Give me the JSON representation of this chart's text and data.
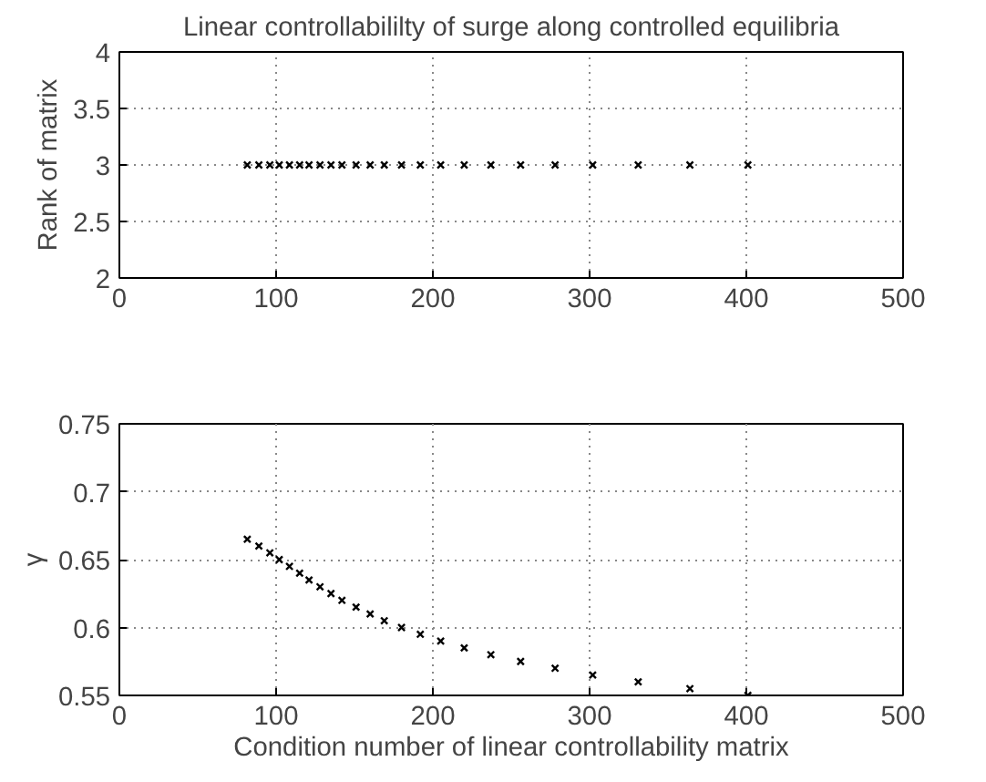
{
  "chart_data": [
    {
      "type": "scatter",
      "title": "Linear controllabililty of surge along controlled equilibria",
      "ylabel": "Rank of matrix",
      "x": [
        81.6,
        89,
        96,
        102,
        108.5,
        115,
        121,
        128,
        135,
        142,
        151,
        160,
        169,
        180,
        192,
        205,
        220,
        237,
        256,
        278,
        302,
        331,
        364,
        401
      ],
      "series": [
        {
          "color": "#000000",
          "values": [
            3,
            3,
            3,
            3,
            3,
            3,
            3,
            3,
            3,
            3,
            3,
            3,
            3,
            3,
            3,
            3,
            3,
            3,
            3,
            3,
            3,
            3,
            3,
            3
          ]
        }
      ],
      "xlim": [
        0,
        500
      ],
      "xticks": [
        0,
        100,
        200,
        300,
        400,
        500
      ],
      "ylim": [
        2,
        4
      ],
      "yticks": [
        2,
        2.5,
        3,
        3.5,
        4
      ],
      "grid": true,
      "marker": "cross"
    },
    {
      "type": "scatter",
      "xlabel": "Condition number of linear controllability matrix",
      "ylabel": "γ",
      "x": [
        81.6,
        89,
        96,
        102,
        108.5,
        115,
        121,
        128,
        135,
        142,
        151,
        160,
        169,
        180,
        192,
        205,
        220,
        237,
        256,
        278,
        302,
        331,
        364,
        401
      ],
      "series": [
        {
          "color": "#000000",
          "values": [
            0.665,
            0.66,
            0.655,
            0.65,
            0.645,
            0.64,
            0.635,
            0.63,
            0.625,
            0.62,
            0.615,
            0.61,
            0.605,
            0.6,
            0.595,
            0.59,
            0.585,
            0.58,
            0.575,
            0.57,
            0.565,
            0.56,
            0.555,
            0.55
          ]
        }
      ],
      "xlim": [
        0,
        500
      ],
      "xticks": [
        0,
        100,
        200,
        300,
        400,
        500
      ],
      "ylim": [
        0.55,
        0.75
      ],
      "yticks": [
        0.55,
        0.6,
        0.65,
        0.7,
        0.75
      ],
      "grid": true,
      "marker": "cross"
    }
  ]
}
